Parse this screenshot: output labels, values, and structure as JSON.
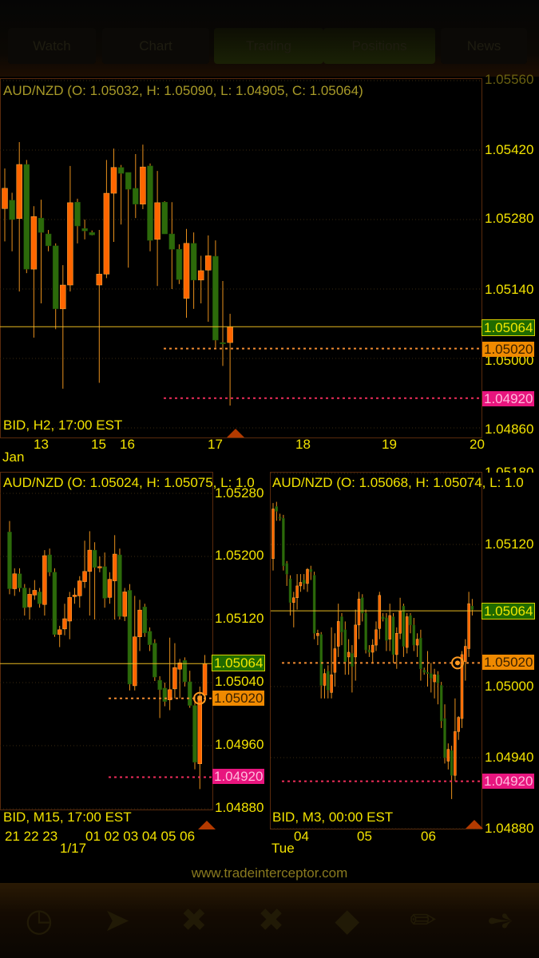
{
  "tabs": [
    {
      "label": "Watch"
    },
    {
      "label": "Chart"
    },
    {
      "label": "Trading",
      "active": true
    },
    {
      "label": "Positions"
    },
    {
      "label": "News"
    }
  ],
  "colors": {
    "bull": "#ff6600",
    "bear": "#2c6a0a",
    "wick": "#e8901c",
    "current_line": "#e8b820",
    "order_line": "#f08a30",
    "stop_line": "#ee2d5a"
  },
  "charts": [
    {
      "header": "AUD/NZD (O: 1.05032, H: 1.05090, L: 1.04905, C: 1.05064)",
      "info": "BID, H2, 17:00 EST",
      "price_labels": [
        "1.05560",
        "1.05420",
        "1.05280",
        "1.05140",
        "1.05000",
        "1.04860"
      ],
      "price_ticks": [
        1.0556,
        1.0542,
        1.0528,
        1.0514,
        1.05,
        1.0486
      ],
      "current": {
        "label": "1.05064",
        "value": 1.05064
      },
      "order": {
        "label": "1.05020",
        "value": 1.0502
      },
      "stop": {
        "label": "1.04920",
        "value": 1.0492
      },
      "x_labels": [
        "13",
        "15",
        "16",
        "17",
        "18",
        "19",
        "20"
      ],
      "x_sub": "Jan",
      "candles": [
        [
          1.05302,
          1.05383,
          1.05236,
          1.05343
        ],
        [
          1.05319,
          1.05334,
          1.05216,
          1.0528
        ],
        [
          1.05282,
          1.05436,
          1.05135,
          1.05391
        ],
        [
          1.05391,
          1.054,
          1.05172,
          1.0518
        ],
        [
          1.0518,
          1.05307,
          1.05042,
          1.05286
        ],
        [
          1.05283,
          1.0532,
          1.05111,
          1.05254
        ],
        [
          1.05251,
          1.05259,
          1.05216,
          1.05227
        ],
        [
          1.05227,
          1.05232,
          1.05059,
          1.051
        ],
        [
          1.051,
          1.05188,
          1.04939,
          1.05148
        ],
        [
          1.05148,
          1.05388,
          1.05135,
          1.05314
        ],
        [
          1.05315,
          1.05322,
          1.05232,
          1.05267
        ],
        [
          1.05262,
          1.0528,
          1.0524,
          1.05257
        ],
        [
          1.05254,
          1.05258,
          1.05248,
          1.05249
        ],
        [
          1.05148,
          1.05259,
          1.04951,
          1.0517
        ],
        [
          1.0517,
          1.054,
          1.05162,
          1.05333
        ],
        [
          1.05333,
          1.05423,
          1.05235,
          1.05385
        ],
        [
          1.05385,
          1.0539,
          1.0527,
          1.05373
        ],
        [
          1.05375,
          1.05375,
          1.05183,
          1.05341
        ],
        [
          1.05343,
          1.05412,
          1.05283,
          1.05311
        ],
        [
          1.05311,
          1.05431,
          1.05301,
          1.05386
        ],
        [
          1.05388,
          1.05393,
          1.05216,
          1.05238
        ],
        [
          1.0524,
          1.05378,
          1.05146,
          1.05314
        ],
        [
          1.05315,
          1.05317,
          1.05251,
          1.05251
        ],
        [
          1.05251,
          1.05315,
          1.0514,
          1.0522
        ],
        [
          1.0522,
          1.0523,
          1.0515,
          1.05159
        ],
        [
          1.05121,
          1.05261,
          1.05082,
          1.05232
        ],
        [
          1.05232,
          1.05254,
          1.051,
          1.05158
        ],
        [
          1.05158,
          1.05207,
          1.05111,
          1.05177
        ],
        [
          1.05178,
          1.05248,
          1.05074,
          1.05207
        ],
        [
          1.05206,
          1.05238,
          1.05022,
          1.05037
        ],
        [
          1.05032,
          1.05156,
          1.04985,
          1.0503
        ],
        [
          1.05032,
          1.0509,
          1.04905,
          1.05064
        ]
      ]
    },
    {
      "header": "AUD/NZD (O: 1.05024, H: 1.05075, L: 1.0",
      "info": "BID, M15, 17:00 EST",
      "price_labels": [
        "1.05280",
        "1.05200",
        "1.05120",
        "1.05040",
        "1.04960",
        "1.04880"
      ],
      "price_ticks": [
        1.0528,
        1.052,
        1.0512,
        1.0504,
        1.0496,
        1.0488
      ],
      "current": {
        "label": "1.05064",
        "value": 1.05064
      },
      "order": {
        "label": "1.05020",
        "value": 1.0502
      },
      "stop": {
        "label": "1.04920",
        "value": 1.0492
      },
      "x_labels": [
        "21 22 23",
        "01 02 03 04 05 06"
      ],
      "x_sub": "1/17",
      "candles": [
        [
          1.05231,
          1.05245,
          1.05152,
          1.05159
        ],
        [
          1.05159,
          1.05185,
          1.0515,
          1.05178
        ],
        [
          1.05178,
          1.05185,
          1.05155,
          1.0516
        ],
        [
          1.0516,
          1.05165,
          1.05125,
          1.05135
        ],
        [
          1.05136,
          1.0516,
          1.0512,
          1.05152
        ],
        [
          1.05151,
          1.0517,
          1.05145,
          1.05157
        ],
        [
          1.05155,
          1.0516,
          1.05135,
          1.0514
        ],
        [
          1.05139,
          1.05208,
          1.05125,
          1.05201
        ],
        [
          1.05202,
          1.0521,
          1.05175,
          1.0518
        ],
        [
          1.0518,
          1.05185,
          1.05098,
          1.05101
        ],
        [
          1.05101,
          1.05112,
          1.05085,
          1.05107
        ],
        [
          1.05108,
          1.0514,
          1.051,
          1.05121
        ],
        [
          1.05118,
          1.05155,
          1.05095,
          1.05148
        ],
        [
          1.05149,
          1.0516,
          1.0514,
          1.05151
        ],
        [
          1.0515,
          1.05175,
          1.05135,
          1.05169
        ],
        [
          1.05168,
          1.0522,
          1.0516,
          1.05181
        ],
        [
          1.05181,
          1.05232,
          1.05125,
          1.05208
        ],
        [
          1.05208,
          1.05218,
          1.0512,
          1.05186
        ],
        [
          1.05186,
          1.052,
          1.0518,
          1.05187
        ],
        [
          1.05187,
          1.05205,
          1.05135,
          1.05147
        ],
        [
          1.05148,
          1.0518,
          1.0514,
          1.05171
        ],
        [
          1.05169,
          1.05227,
          1.0512,
          1.05203
        ],
        [
          1.05202,
          1.0521,
          1.0512,
          1.05124
        ],
        [
          1.05124,
          1.0516,
          1.05118,
          1.05155
        ],
        [
          1.05157,
          1.05165,
          1.0503,
          1.05038
        ],
        [
          1.05036,
          1.0515,
          1.0503,
          1.05098
        ],
        [
          1.05098,
          1.05145,
          1.0508,
          1.05132
        ],
        [
          1.05136,
          1.0514,
          1.05098,
          1.05103
        ],
        [
          1.05105,
          1.0511,
          1.0508,
          1.05088
        ],
        [
          1.0509,
          1.05095,
          1.05042,
          1.05047
        ],
        [
          1.05043,
          1.05048,
          1.04995,
          1.05031
        ],
        [
          1.05033,
          1.0504,
          1.0501,
          1.05016
        ],
        [
          1.05018,
          1.05097,
          1.05005,
          1.05031
        ],
        [
          1.05032,
          1.0509,
          1.0502,
          1.05059
        ],
        [
          1.05057,
          1.0507,
          1.0502,
          1.05065
        ],
        [
          1.05068,
          1.05072,
          1.05035,
          1.05041
        ],
        [
          1.05041,
          1.05055,
          1.05008,
          1.05011
        ],
        [
          1.05011,
          1.05025,
          1.0493,
          1.04939
        ],
        [
          1.04937,
          1.05035,
          1.04905,
          1.05023
        ],
        [
          1.05024,
          1.05075,
          1.05015,
          1.05064
        ]
      ]
    },
    {
      "header": "AUD/NZD (O: 1.05068, H: 1.05074, L: 1.0",
      "info": "BID, M3, 00:00 EST",
      "price_labels": [
        "1.05180",
        "1.05120",
        "1.05000",
        "1.04940",
        "1.04880"
      ],
      "price_ticks": [
        1.0518,
        1.0512,
        1.05,
        1.0494,
        1.0488
      ],
      "current": {
        "label": "1.05064",
        "value": 1.05064
      },
      "order": {
        "label": "1.05020",
        "value": 1.0502
      },
      "stop": {
        "label": "1.04920",
        "value": 1.0492
      },
      "x_labels": [
        "04",
        "05",
        "06"
      ],
      "x_sub": "Tue",
      "candles": [
        [
          1.05108,
          1.05155,
          1.05098,
          1.0515
        ],
        [
          1.05152,
          1.05156,
          1.0514,
          1.05148
        ],
        [
          1.05143,
          1.05146,
          1.0514,
          1.05142
        ],
        [
          1.05142,
          1.05145,
          1.05098,
          1.05102
        ],
        [
          1.05104,
          1.05106,
          1.05085,
          1.05095
        ],
        [
          1.05091,
          1.05094,
          1.0506,
          1.05071
        ],
        [
          1.05071,
          1.0508,
          1.0505,
          1.05075
        ],
        [
          1.05075,
          1.05095,
          1.05065,
          1.05085
        ],
        [
          1.05085,
          1.05095,
          1.0508,
          1.05088
        ],
        [
          1.0509,
          1.05095,
          1.05082,
          1.05087
        ],
        [
          1.05087,
          1.051,
          1.0508,
          1.05099
        ],
        [
          1.05099,
          1.05102,
          1.0509,
          1.05097
        ],
        [
          1.05094,
          1.05097,
          1.0504,
          1.05045
        ],
        [
          1.05043,
          1.05048,
          1.05035,
          1.05045
        ],
        [
          1.05044,
          1.05046,
          1.0499,
          1.05001
        ],
        [
          1.05001,
          1.05015,
          1.0499,
          1.05011
        ],
        [
          1.05013,
          1.05018,
          1.0499,
          1.04997
        ],
        [
          1.04995,
          1.0505,
          1.0499,
          1.0501
        ],
        [
          1.05012,
          1.05045,
          1.05,
          1.05032
        ],
        [
          1.05034,
          1.0507,
          1.05025,
          1.05055
        ],
        [
          1.05059,
          1.05062,
          1.05035,
          1.05046
        ],
        [
          1.05048,
          1.05055,
          1.0501,
          1.05021
        ],
        [
          1.05025,
          1.0504,
          1.0501,
          1.05029
        ],
        [
          1.05028,
          1.05035,
          1.04995,
          1.05017
        ],
        [
          1.05025,
          1.05065,
          1.05005,
          1.05052
        ],
        [
          1.05052,
          1.0508,
          1.0504,
          1.05074
        ],
        [
          1.05075,
          1.05078,
          1.05055,
          1.05062
        ],
        [
          1.05062,
          1.05065,
          1.05028,
          1.05031
        ],
        [
          1.05031,
          1.05035,
          1.05025,
          1.05029
        ],
        [
          1.05029,
          1.0504,
          1.0502,
          1.05035
        ],
        [
          1.05035,
          1.05055,
          1.0503,
          1.05048
        ],
        [
          1.05049,
          1.0508,
          1.0504,
          1.05077
        ],
        [
          1.05059,
          1.05062,
          1.05055,
          1.05057
        ],
        [
          1.05058,
          1.05062,
          1.0503,
          1.05039
        ],
        [
          1.0504,
          1.0507,
          1.0503,
          1.0506
        ],
        [
          1.05059,
          1.05062,
          1.0502,
          1.05027
        ],
        [
          1.05027,
          1.0505,
          1.05015,
          1.05045
        ],
        [
          1.05045,
          1.05075,
          1.0504,
          1.05064
        ],
        [
          1.05068,
          1.0507,
          1.05025,
          1.05034
        ],
        [
          1.05033,
          1.05062,
          1.05028,
          1.05059
        ],
        [
          1.0506,
          1.05062,
          1.05045,
          1.05052
        ],
        [
          1.05052,
          1.05058,
          1.0503,
          1.05035
        ],
        [
          1.05035,
          1.05045,
          1.05025,
          1.0504
        ],
        [
          1.05041,
          1.05048,
          1.05005,
          1.05015
        ],
        [
          1.05014,
          1.05016,
          1.0501,
          1.05012
        ],
        [
          1.05012,
          1.0503,
          1.05,
          1.05011
        ],
        [
          1.05011,
          1.0502,
          1.04995,
          1.05007
        ],
        [
          1.05004,
          1.05015,
          1.0499,
          1.0501
        ],
        [
          1.0501,
          1.05013,
          1.04985,
          1.05003
        ],
        [
          1.05001,
          1.05004,
          1.04965,
          1.04971
        ],
        [
          1.04973,
          1.04985,
          1.04935,
          1.0494
        ],
        [
          1.04937,
          1.04952,
          1.0493,
          1.04947
        ],
        [
          1.04946,
          1.0495,
          1.04905,
          1.04925
        ],
        [
          1.04925,
          1.0499,
          1.0492,
          1.04962
        ],
        [
          1.04962,
          1.04975,
          1.04955,
          1.04974
        ],
        [
          1.04973,
          1.0503,
          1.04965,
          1.05027
        ],
        [
          1.05021,
          1.0504,
          1.05005,
          1.05034
        ],
        [
          1.05032,
          1.0508,
          1.05025,
          1.0507
        ],
        [
          1.05068,
          1.05074,
          1.0506,
          1.05065
        ]
      ]
    }
  ],
  "watermark": "www.tradeinterceptor.com",
  "nav_icons": [
    "clock-icon",
    "rocket-icon",
    "buy-sell-icon",
    "positions-icon",
    "tag-icon",
    "pencil-icon",
    "share-icon"
  ]
}
